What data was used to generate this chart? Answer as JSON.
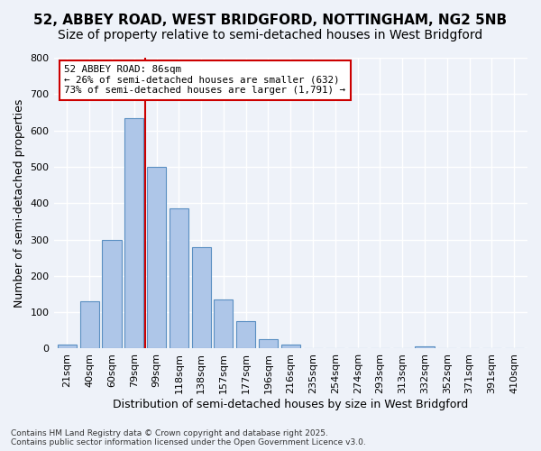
{
  "title_line1": "52, ABBEY ROAD, WEST BRIDGFORD, NOTTINGHAM, NG2 5NB",
  "title_line2": "Size of property relative to semi-detached houses in West Bridgford",
  "xlabel": "Distribution of semi-detached houses by size in West Bridgford",
  "ylabel": "Number of semi-detached properties",
  "footnote1": "Contains HM Land Registry data © Crown copyright and database right 2025.",
  "footnote2": "Contains public sector information licensed under the Open Government Licence v3.0.",
  "bar_labels": [
    "21sqm",
    "40sqm",
    "60sqm",
    "79sqm",
    "99sqm",
    "118sqm",
    "138sqm",
    "157sqm",
    "177sqm",
    "196sqm",
    "216sqm",
    "235sqm",
    "254sqm",
    "274sqm",
    "293sqm",
    "313sqm",
    "332sqm",
    "352sqm",
    "371sqm",
    "391sqm",
    "410sqm"
  ],
  "bar_values": [
    10,
    130,
    300,
    635,
    500,
    385,
    280,
    135,
    75,
    25,
    12,
    0,
    0,
    0,
    0,
    0,
    5,
    0,
    0,
    0,
    0
  ],
  "bar_color": "#aec6e8",
  "bar_edge_color": "#5a8fc2",
  "property_label": "52 ABBEY ROAD: 86sqm",
  "annotation_line1": "← 26% of semi-detached houses are smaller (632)",
  "annotation_line2": "73% of semi-detached houses are larger (1,791) →",
  "annotation_box_color": "#ffffff",
  "annotation_border_color": "#cc0000",
  "vline_color": "#cc0000",
  "vline_x": 3.5,
  "ylim": [
    0,
    800
  ],
  "yticks": [
    0,
    100,
    200,
    300,
    400,
    500,
    600,
    700,
    800
  ],
  "background_color": "#eef2f9",
  "grid_color": "#ffffff",
  "title_fontsize": 11,
  "subtitle_fontsize": 10,
  "axis_fontsize": 9,
  "tick_fontsize": 8
}
